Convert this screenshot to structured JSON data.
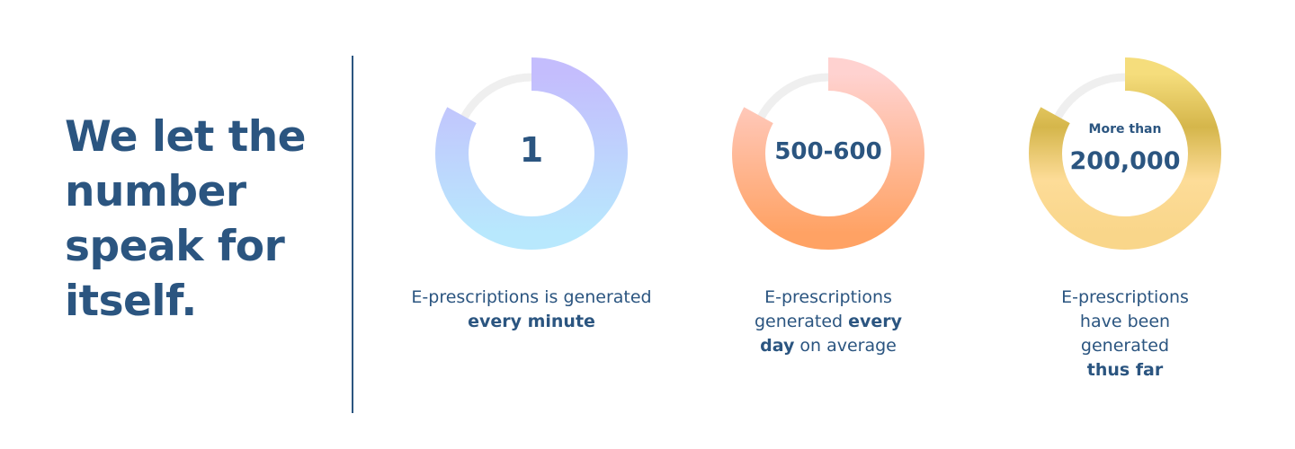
{
  "headline": [
    "We let the",
    "number",
    "speak for",
    "itself."
  ],
  "stats": [
    {
      "value": "1",
      "pre": "",
      "caption_plain": "E-prescriptions is generated ",
      "caption_bold": "every minute",
      "caption_after": "",
      "fill_percent": 83,
      "colors": [
        "#b8e8fd",
        "#c4bdfd"
      ]
    },
    {
      "value": "500-600",
      "pre": "",
      "caption_plain": "E-prescriptions generated ",
      "caption_bold": "every day",
      "caption_after": " on average",
      "fill_percent": 83,
      "colors": [
        "#ffa264",
        "#ffd2d0"
      ]
    },
    {
      "value": "200,000",
      "pre": "More than",
      "caption_plain": "E-prescriptions have been generated ",
      "caption_bold": "thus far",
      "caption_after": "",
      "fill_percent": 83,
      "colors": [
        "#f9d68a",
        "#fddc98",
        "#d5b64b",
        "#f5dd7c"
      ]
    }
  ],
  "track_color": "#efefef",
  "text_color": "#2b5580"
}
